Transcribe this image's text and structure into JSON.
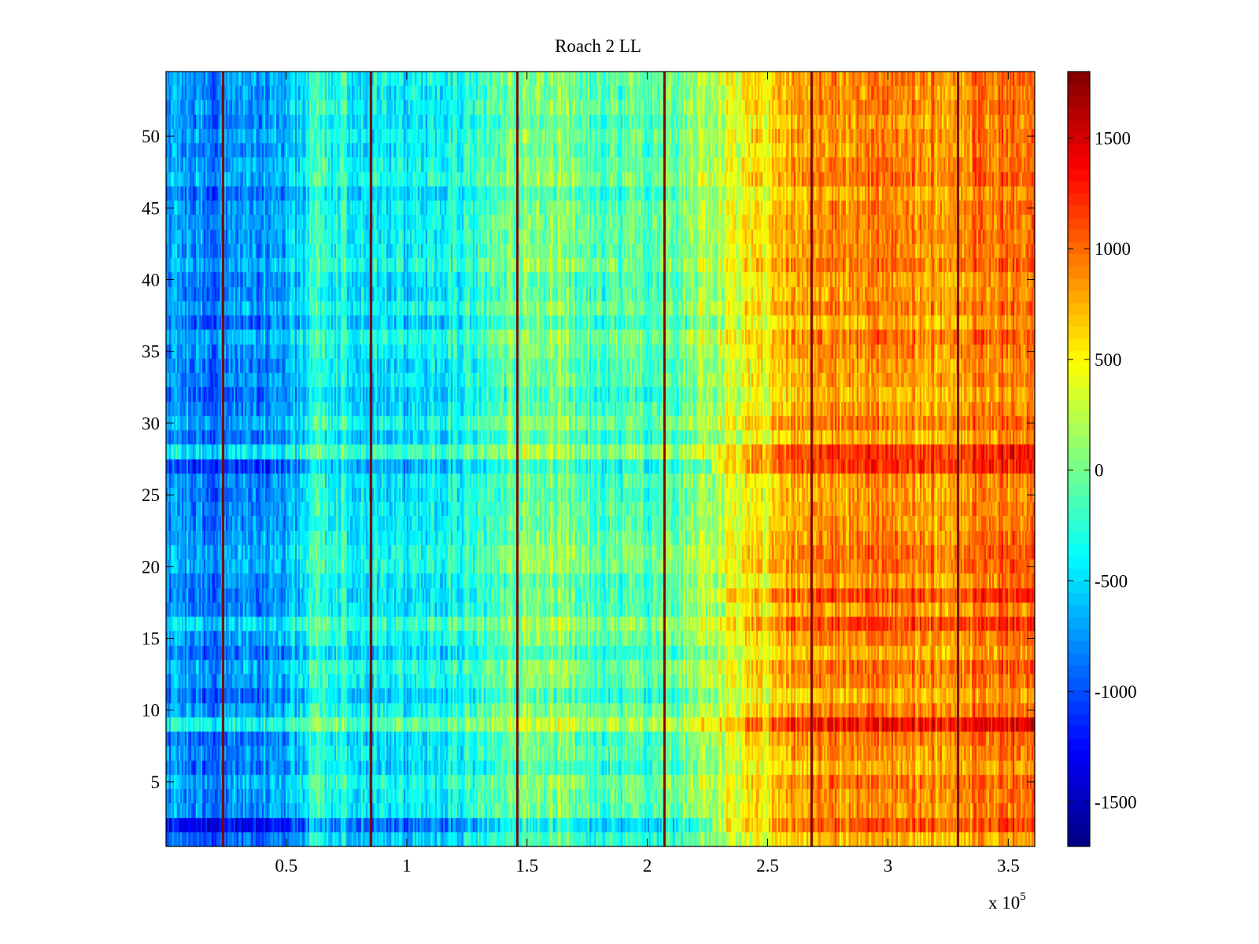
{
  "chart_data": {
    "type": "heatmap",
    "title": "Roach 2 LL",
    "xlabel": "",
    "ylabel": "",
    "x_exponent_label": "x 10",
    "x_exponent_power": "5",
    "xlim": [
      0,
      3.61
    ],
    "ylim": [
      0.5,
      54.5
    ],
    "x_scale_factor": 100000,
    "x_ticks": [
      0.5,
      1,
      1.5,
      2,
      2.5,
      3,
      3.5
    ],
    "x_tick_labels": [
      "0.5",
      "1",
      "1.5",
      "2",
      "2.5",
      "3",
      "3.5"
    ],
    "y_ticks": [
      5,
      10,
      15,
      20,
      25,
      30,
      35,
      40,
      45,
      50
    ],
    "y_tick_labels": [
      "5",
      "10",
      "15",
      "20",
      "25",
      "30",
      "35",
      "40",
      "45",
      "50"
    ],
    "rows": 54,
    "colormap": "jet",
    "color_range": [
      -1700,
      1800
    ],
    "colorbar_ticks": [
      -1500,
      -1000,
      -500,
      0,
      500,
      1000,
      1500
    ],
    "colorbar_tick_labels": [
      "-1500",
      "-1000",
      "-500",
      "0",
      "500",
      "1000",
      "1500"
    ],
    "column_profile": {
      "x": [
        0,
        0.25,
        0.55,
        0.6,
        0.85,
        1.0,
        1.25,
        1.45,
        1.55,
        1.75,
        2.05,
        2.3,
        2.55,
        2.75,
        3.0,
        3.3,
        3.61
      ],
      "values": [
        -750,
        -800,
        -650,
        -250,
        -400,
        -500,
        -300,
        0,
        100,
        -100,
        -150,
        250,
        650,
        850,
        900,
        850,
        1000
      ]
    },
    "row_offsets": [
      {
        "row": 2,
        "value": -400
      },
      {
        "row": 8,
        "value": -100
      },
      {
        "row": 9,
        "value": 450
      },
      {
        "row": 16,
        "value": 300
      },
      {
        "row": 18,
        "value": -200
      },
      {
        "row": 27,
        "value": -350
      },
      {
        "row": 28,
        "value": 450
      }
    ],
    "discontinuity_lines_x": [
      0.235,
      0.85,
      1.46,
      2.07,
      2.68,
      3.29
    ],
    "discontinuity_value": 1800
  }
}
